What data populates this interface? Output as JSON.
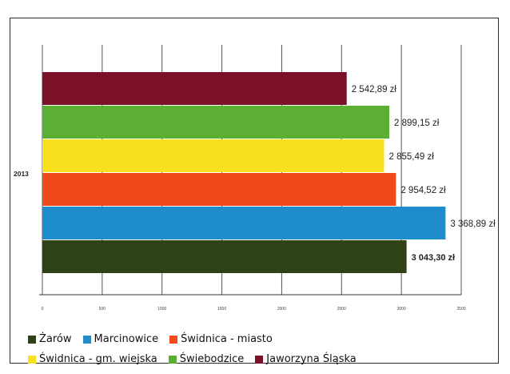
{
  "chart_data": {
    "type": "bar",
    "orientation": "horizontal",
    "category": "2013",
    "xlim": [
      0,
      3500
    ],
    "x_ticks": [
      "0",
      "500",
      "1000",
      "1500",
      "2000",
      "2500",
      "3000",
      "3500"
    ],
    "grid": true,
    "legend_position": "bottom",
    "series": [
      {
        "name": "Jaworzyna Śląska",
        "value": 2542.89,
        "label": "2 542,89 zł",
        "color": "#7b1126",
        "bold": false
      },
      {
        "name": "Świebodzice",
        "value": 2899.15,
        "label": "2 899,15 zł",
        "color": "#5bb033",
        "bold": false
      },
      {
        "name": "Świdnica - gm. wiejska",
        "value": 2855.49,
        "label": "2 855,49 zł",
        "color": "#f7e01d",
        "bold": false
      },
      {
        "name": "Świdnica - miasto",
        "value": 2954.52,
        "label": "2 954,52 zł",
        "color": "#f0491c",
        "bold": false
      },
      {
        "name": "Marcinowice",
        "value": 3368.89,
        "label": "3 368,89 zł",
        "color": "#1f8ccc",
        "bold": false
      },
      {
        "name": "Żarów",
        "value": 3043.3,
        "label": "3 043,30 zł",
        "color": "#2e4117",
        "bold": true
      }
    ]
  },
  "legend": {
    "rows": [
      [
        {
          "name": "Żarów",
          "color": "#2e4117"
        },
        {
          "name": "Marcinowice",
          "color": "#1f8ccc"
        },
        {
          "name": "Świdnica - miasto",
          "color": "#f0491c"
        }
      ],
      [
        {
          "name": "Świdnica - gm. wiejska",
          "color": "#f7e01d"
        },
        {
          "name": "Świebodzice",
          "color": "#5bb033"
        },
        {
          "name": "Jaworzyna Śląska",
          "color": "#7b1126"
        }
      ]
    ]
  }
}
